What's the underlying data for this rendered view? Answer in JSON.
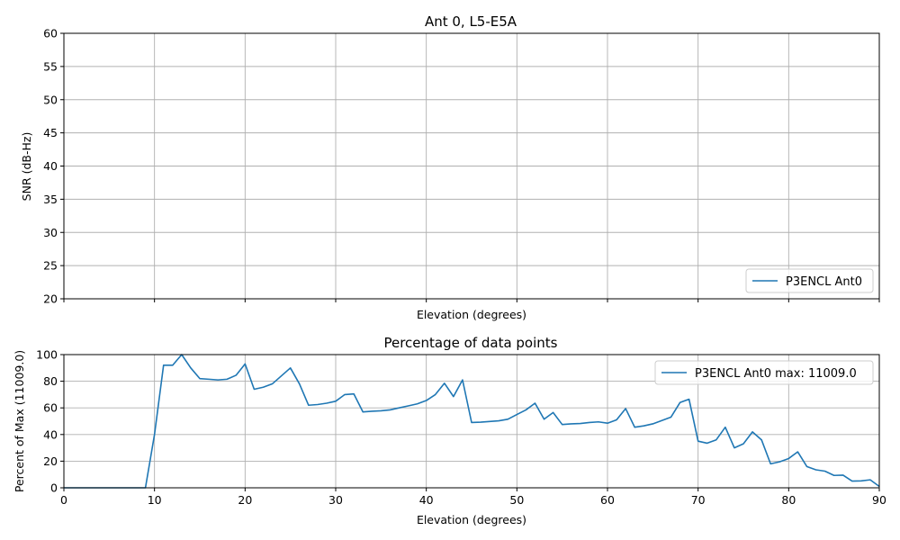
{
  "chart_data": [
    {
      "type": "line",
      "title": "Ant 0, L5-E5A",
      "xlabel": "Elevation (degrees)",
      "ylabel": "SNR (dB-Hz)",
      "xlim": [
        0,
        90
      ],
      "ylim": [
        20,
        60
      ],
      "yticks": [
        20,
        25,
        30,
        35,
        40,
        45,
        50,
        55,
        60
      ],
      "xticks": [
        0,
        10,
        20,
        30,
        40,
        50,
        60,
        70,
        80,
        90
      ],
      "show_xtick_labels": false,
      "grid": true,
      "legend": {
        "placement": "lower-right",
        "entries": [
          "P3ENCL Ant0"
        ]
      },
      "series": [
        {
          "name": "P3ENCL Ant0",
          "color": "#1f77b4",
          "x": [],
          "y": []
        }
      ]
    },
    {
      "type": "line",
      "title": "Percentage of data points",
      "xlabel": "Elevation (degrees)",
      "ylabel": "Percent of Max (11009.0)",
      "xlim": [
        0,
        90
      ],
      "ylim": [
        0,
        100
      ],
      "yticks": [
        0,
        20,
        40,
        60,
        80,
        100
      ],
      "xticks": [
        0,
        10,
        20,
        30,
        40,
        50,
        60,
        70,
        80,
        90
      ],
      "show_xtick_labels": true,
      "grid": true,
      "legend": {
        "placement": "upper-right",
        "entries": [
          "P3ENCL Ant0 max: 11009.0"
        ]
      },
      "series": [
        {
          "name": "P3ENCL Ant0 max: 11009.0",
          "color": "#1f77b4",
          "x": [
            0,
            1,
            2,
            3,
            4,
            5,
            6,
            7,
            8,
            9,
            10,
            11,
            12,
            13,
            14,
            15,
            16,
            17,
            18,
            19,
            20,
            21,
            22,
            23,
            24,
            25,
            26,
            27,
            28,
            29,
            30,
            31,
            32,
            33,
            34,
            35,
            36,
            37,
            38,
            39,
            40,
            41,
            42,
            43,
            44,
            45,
            46,
            47,
            48,
            49,
            50,
            51,
            52,
            53,
            54,
            55,
            56,
            57,
            58,
            59,
            60,
            61,
            62,
            63,
            64,
            65,
            66,
            67,
            68,
            69,
            70,
            71,
            72,
            73,
            74,
            75,
            76,
            77,
            78,
            79,
            80,
            81,
            82,
            83,
            84,
            85,
            86,
            87,
            88,
            89,
            90
          ],
          "y": [
            0,
            0,
            0,
            0,
            0,
            0,
            0,
            0,
            0,
            0,
            40,
            92,
            92,
            100,
            90,
            82,
            81.5,
            81,
            81.5,
            84.5,
            93,
            74,
            75.5,
            78,
            84,
            90,
            78,
            62,
            62.5,
            63.5,
            65,
            70,
            70.5,
            57,
            57.5,
            57.8,
            58.5,
            60,
            61.5,
            63,
            65.5,
            70,
            78.5,
            68.5,
            81,
            49,
            49.3,
            49.8,
            50.3,
            51.5,
            55,
            58.5,
            63.5,
            51.5,
            56.5,
            47.5,
            48,
            48.3,
            49,
            49.5,
            48.5,
            51,
            59.5,
            45.5,
            46.5,
            48,
            50.5,
            53,
            64,
            66.5,
            35,
            33.5,
            36,
            45.5,
            30,
            33,
            42,
            36,
            18,
            19.5,
            22,
            27,
            16,
            13.5,
            12.5,
            9.3,
            9.5,
            5,
            5.2,
            6,
            1
          ]
        }
      ]
    }
  ]
}
